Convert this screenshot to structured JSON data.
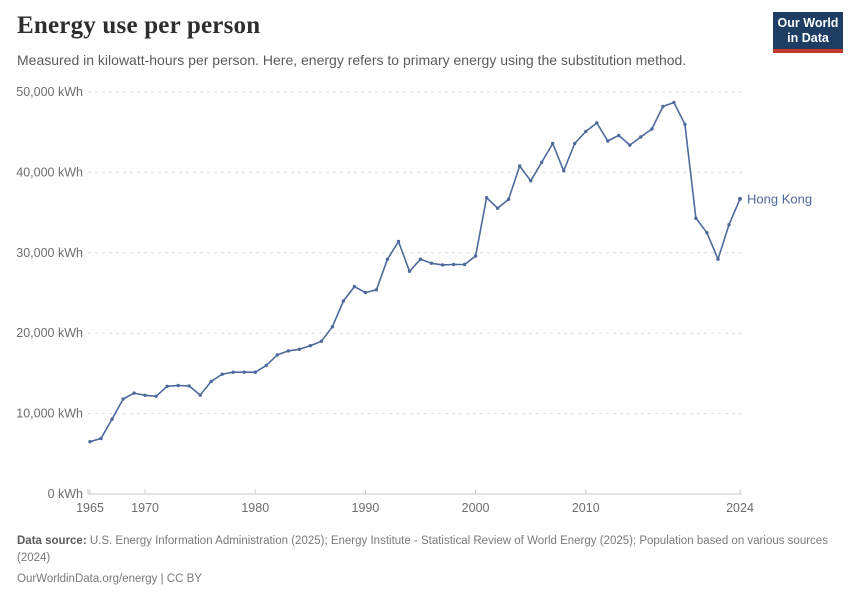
{
  "header": {
    "title": "Energy use per person",
    "subtitle": "Measured in kilowatt-hours per person. Here, energy refers to primary energy using the substitution method.",
    "logo": {
      "line1": "Our World",
      "line2": "in Data"
    }
  },
  "chart_data": {
    "type": "line",
    "title": "Energy use per person",
    "unit": "kWh",
    "entity_label": "Hong Kong",
    "xlabel": "",
    "ylabel": "",
    "ylim": [
      0,
      50000
    ],
    "xlim": [
      1965,
      2024
    ],
    "grid": "horizontal-dashed",
    "legend_position": "end-of-line-label",
    "ytick_values": [
      0,
      10000,
      20000,
      30000,
      40000,
      50000
    ],
    "ytick_labels": [
      "0 kWh",
      "10,000 kWh",
      "20,000 kWh",
      "30,000 kWh",
      "40,000 kWh",
      "50,000 kWh"
    ],
    "xtick_values": [
      1965,
      1970,
      1980,
      1990,
      2000,
      2010,
      2024
    ],
    "xtick_labels": [
      "1965",
      "1970",
      "1980",
      "1990",
      "2000",
      "2010",
      "2024"
    ],
    "x": [
      1965,
      1966,
      1967,
      1968,
      1969,
      1970,
      1971,
      1972,
      1973,
      1974,
      1975,
      1976,
      1977,
      1978,
      1979,
      1980,
      1981,
      1982,
      1983,
      1984,
      1985,
      1986,
      1987,
      1988,
      1989,
      1990,
      1991,
      1992,
      1993,
      1994,
      1995,
      1996,
      1997,
      1998,
      1999,
      2000,
      2001,
      2002,
      2003,
      2004,
      2005,
      2006,
      2007,
      2008,
      2009,
      2010,
      2011,
      2012,
      2013,
      2014,
      2015,
      2016,
      2017,
      2018,
      2019,
      2020,
      2021,
      2022,
      2023,
      2024
    ],
    "series": [
      {
        "name": "Hong Kong",
        "values": [
          6500,
          6900,
          9300,
          11800,
          12550,
          12280,
          12150,
          13400,
          13500,
          13450,
          12300,
          14000,
          14900,
          15150,
          15150,
          15150,
          16000,
          17300,
          17800,
          18000,
          18450,
          19000,
          20800,
          24000,
          25800,
          25050,
          25400,
          29200,
          31400,
          27700,
          29200,
          28700,
          28500,
          28550,
          28550,
          29600,
          36850,
          35550,
          36650,
          40800,
          38950,
          41250,
          43600,
          40200,
          43600,
          45100,
          46150,
          43900,
          44600,
          43400,
          44400,
          45400,
          48200,
          48700,
          46000,
          34300,
          32500,
          29200,
          33500,
          36700
        ]
      }
    ]
  },
  "footer": {
    "source_label": "Data source:",
    "source_text": "U.S. Energy Information Administration (2025); Energy Institute - Statistical Review of World Energy (2025); Population based on various sources (2024)",
    "link_line": "OurWorldinData.org/energy | CC BY"
  },
  "colors": {
    "line": "#4c6a9c",
    "entity_label": "#4c6a9c",
    "grid": "#dcdcdc",
    "axis": "#c9c9c9",
    "tick_text": "#6d6d6d",
    "logo_navy": "#1d3d63",
    "logo_red": "#c43a31"
  }
}
